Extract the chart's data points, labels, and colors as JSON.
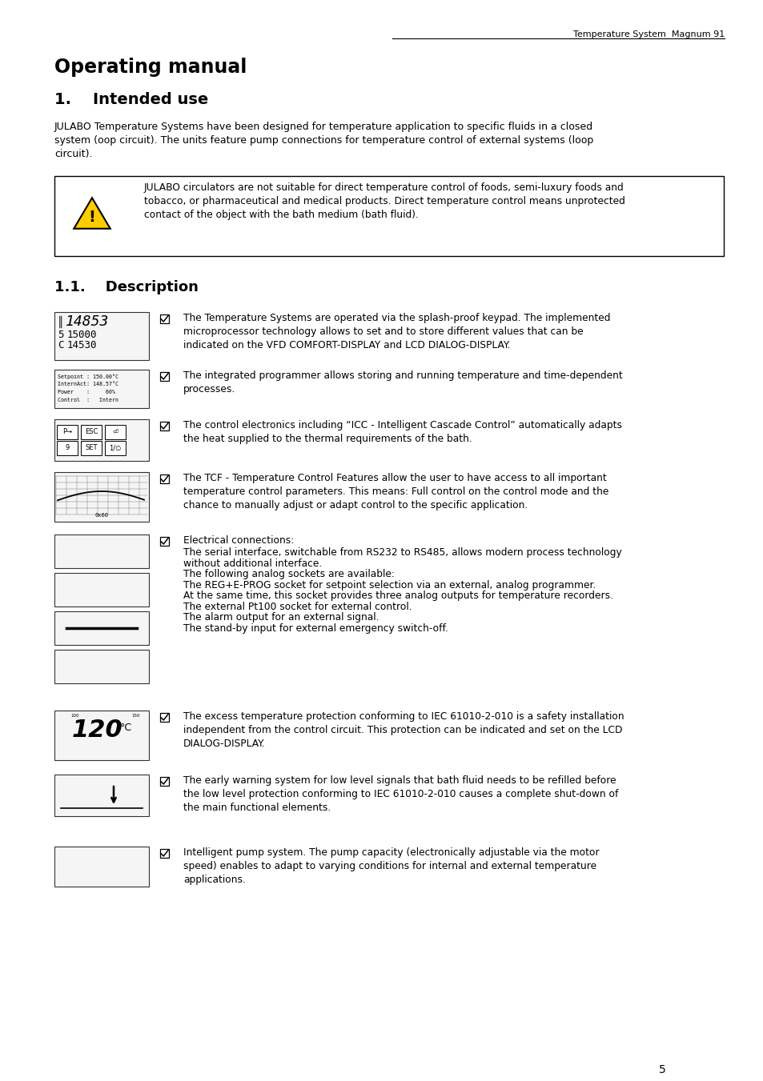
{
  "header_right": "Temperature System  Magnum 91",
  "title": "Operating manual",
  "section1": "1.    Intended use",
  "intro_text": "JULABO Temperature Systems have been designed for temperature application to specific fluids in a closed\nsystem (oop circuit). The units feature pump connections for temperature control of external systems (loop\ncircuit).",
  "warning_text": "JULABO circulators are not suitable for direct temperature control of foods, semi-luxury foods and\ntobacco, or pharmaceutical and medical products. Direct temperature control means unprotected\ncontact of the object with the bath medium (bath fluid).",
  "section11": "1.1.    Description",
  "bullet1": "The Temperature Systems are operated via the splash-proof keypad. The implemented\nmicroprocessor technology allows to set and to store different values that can be\nindicated on the VFD COMFORT-DISPLAY and LCD DIALOG-DISPLAY.",
  "bullet2": "The integrated programmer allows storing and running temperature and time-dependent\nprocesses.",
  "bullet3": "The control electronics including “ICC - Intelligent Cascade Control” automatically adapts\nthe heat supplied to the thermal requirements of the bath.",
  "bullet4": "The TCF - Temperature Control Features allow the user to have access to all important\ntemperature control parameters. This means: Full control on the control mode and the\nchance to manually adjust or adapt control to the specific application.",
  "bullet5_title": "Electrical connections:",
  "bullet5_lines": [
    "The serial interface, switchable from RS232 to RS485, allows modern process technology",
    "without additional interface.",
    "The following analog sockets are available:",
    "The REG+E-PROG socket for setpoint selection via an external, analog programmer.",
    "At the same time, this socket provides three analog outputs for temperature recorders.",
    "The external Pt100 socket for external control.",
    "The alarm output for an external signal.",
    "The stand-by input for external emergency switch-off."
  ],
  "bullet6": "The excess temperature protection conforming to IEC 61010-2-010 is a safety installation\nindependent from the control circuit. This protection can be indicated and set on the LCD\nDIALOG-DISPLAY.",
  "bullet7": "The early warning system for low level signals that bath fluid needs to be refilled before\nthe low level protection conforming to IEC 61010-2-010 causes a complete shut-down of\nthe main functional elements.",
  "bullet8": "Intelligent pump system. The pump capacity (electronically adjustable via the motor\nspeed) enables to adapt to varying conditions for internal and external temperature\napplications.",
  "page_number": "5"
}
